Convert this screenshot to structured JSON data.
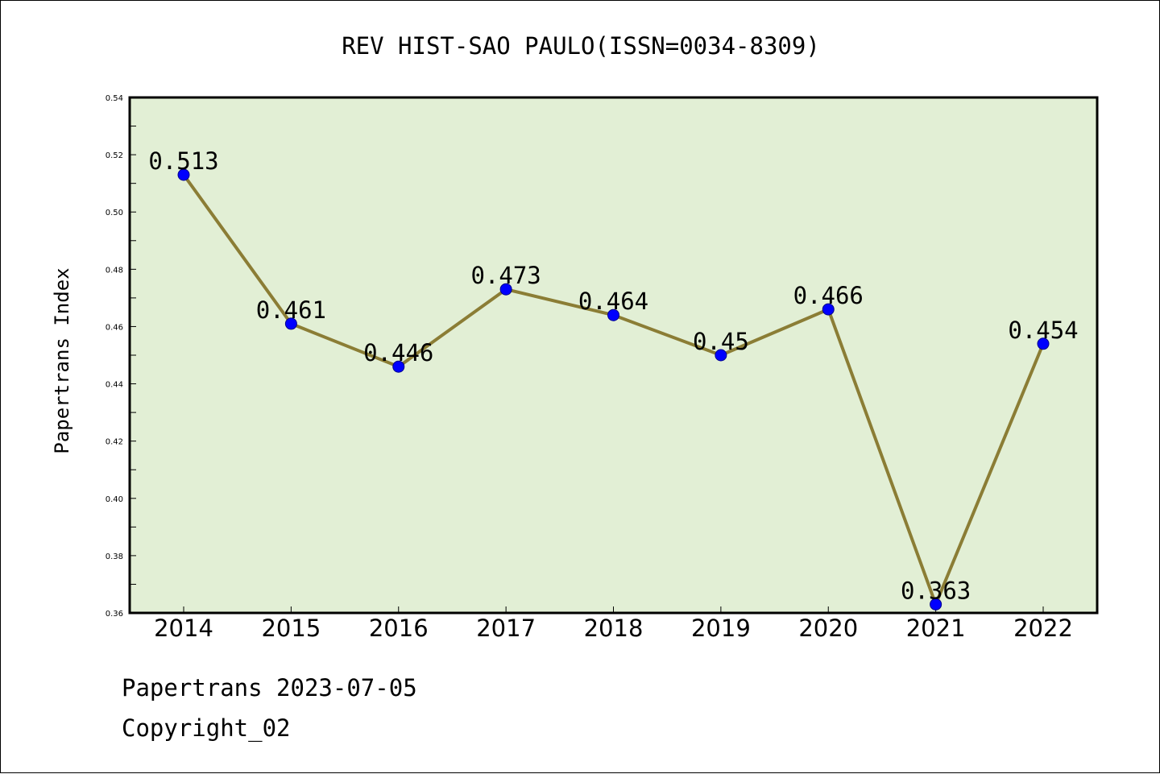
{
  "chart_data": {
    "type": "line",
    "title": "REV HIST-SAO PAULO(ISSN=0034-8309)",
    "xlabel": "",
    "ylabel": "Papertrans Index",
    "categories": [
      "2014",
      "2015",
      "2016",
      "2017",
      "2018",
      "2019",
      "2020",
      "2021",
      "2022"
    ],
    "series": [
      {
        "values": [
          0.513,
          0.461,
          0.446,
          0.473,
          0.464,
          0.45,
          0.466,
          0.363,
          0.454
        ],
        "labels": [
          "0.513",
          "0.461",
          "0.446",
          "0.473",
          "0.464",
          "0.45",
          "0.466",
          "0.363",
          "0.454"
        ]
      }
    ],
    "ylim": [
      0.36,
      0.54
    ],
    "yticks": [
      0.36,
      0.38,
      0.4,
      0.42,
      0.44,
      0.46,
      0.48,
      0.5,
      0.52,
      0.54
    ],
    "ytick_labels": [
      "0.36",
      "0.38",
      "0.40",
      "0.42",
      "0.44",
      "0.46",
      "0.48",
      "0.50",
      "0.52",
      "0.54"
    ],
    "grid": false,
    "legend": "none",
    "colors": {
      "plot_background": "#e2efd5",
      "line": "#8b7d35",
      "marker_fill": "#0000ff",
      "marker_edge": "#00008b",
      "axes": "#000000"
    }
  },
  "footer": {
    "line1": "Papertrans 2023-07-05",
    "line2": "Copyright_02"
  }
}
